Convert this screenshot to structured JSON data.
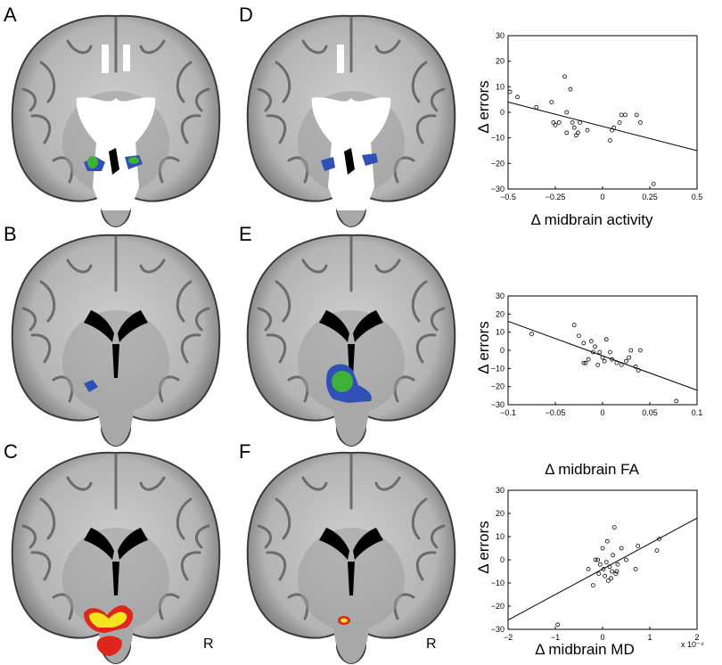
{
  "figure": {
    "panel_labels": [
      "A",
      "B",
      "C",
      "D",
      "E",
      "F"
    ],
    "orientation_label": "R",
    "colors": {
      "white_mask": "#ffffff",
      "blue_roi": "#3050b8",
      "green_roi": "#3fb03a",
      "yellow_activation": "#f5e51e",
      "red_activation": "#e0261c"
    }
  },
  "chart_data": [
    {
      "type": "scatter",
      "xlabel": "Δ midbrain activity",
      "ylabel": "Δ errors",
      "xlim": [
        -0.5,
        0.5
      ],
      "ylim": [
        -30,
        30
      ],
      "x_ticks": [
        "−0.5",
        "−0.25",
        "0",
        "0.25",
        "0.5"
      ],
      "y_ticks": [
        "30",
        "20",
        "10",
        "0",
        "−10",
        "−20",
        "−30"
      ],
      "x_tick_values": [
        -0.5,
        -0.25,
        0,
        0.25,
        0.5
      ],
      "y_tick_values": [
        30,
        20,
        10,
        0,
        -10,
        -20,
        -30
      ],
      "points": [
        [
          -0.49,
          8
        ],
        [
          -0.45,
          6
        ],
        [
          -0.35,
          2
        ],
        [
          -0.27,
          4
        ],
        [
          -0.26,
          -4
        ],
        [
          -0.25,
          -5
        ],
        [
          -0.23,
          -4
        ],
        [
          -0.2,
          14
        ],
        [
          -0.19,
          0
        ],
        [
          -0.19,
          -8
        ],
        [
          -0.17,
          9
        ],
        [
          -0.16,
          -4
        ],
        [
          -0.15,
          -6
        ],
        [
          -0.14,
          -9
        ],
        [
          -0.13,
          -8
        ],
        [
          -0.12,
          -4
        ],
        [
          -0.08,
          -7
        ],
        [
          0.04,
          -11
        ],
        [
          0.05,
          -7
        ],
        [
          0.06,
          -6
        ],
        [
          0.09,
          -4
        ],
        [
          0.1,
          -1
        ],
        [
          0.12,
          -1
        ],
        [
          0.18,
          -1
        ],
        [
          0.2,
          -4
        ],
        [
          0.27,
          -28
        ]
      ],
      "fit_line": [
        [
          -0.5,
          4
        ],
        [
          0.5,
          -15
        ]
      ]
    },
    {
      "type": "scatter",
      "xlabel": "Δ midbrain FA",
      "ylabel": "Δ errors",
      "xlim": [
        -0.1,
        0.1
      ],
      "ylim": [
        -30,
        30
      ],
      "x_ticks": [
        "−0.1",
        "−0.05",
        "0",
        "0.05",
        "0.1"
      ],
      "y_ticks": [
        "30",
        "20",
        "10",
        "0",
        "−10",
        "−20",
        "−30"
      ],
      "x_tick_values": [
        -0.1,
        -0.05,
        0,
        0.05,
        0.1
      ],
      "y_tick_values": [
        30,
        20,
        10,
        0,
        -10,
        -20,
        -30
      ],
      "points": [
        [
          -0.075,
          9
        ],
        [
          -0.03,
          14
        ],
        [
          -0.025,
          8
        ],
        [
          -0.02,
          4
        ],
        [
          -0.02,
          -7
        ],
        [
          -0.018,
          -7
        ],
        [
          -0.015,
          -5
        ],
        [
          -0.012,
          5
        ],
        [
          -0.01,
          -1
        ],
        [
          -0.008,
          2
        ],
        [
          -0.005,
          -8
        ],
        [
          -0.003,
          -1
        ],
        [
          0,
          -4
        ],
        [
          0.002,
          -6
        ],
        [
          0.004,
          6
        ],
        [
          0.008,
          -1
        ],
        [
          0.01,
          -5
        ],
        [
          0.015,
          -7
        ],
        [
          0.02,
          -8
        ],
        [
          0.025,
          -6
        ],
        [
          0.028,
          -4
        ],
        [
          0.03,
          0
        ],
        [
          0.035,
          -9
        ],
        [
          0.038,
          -11
        ],
        [
          0.04,
          0
        ],
        [
          0.078,
          -28
        ]
      ],
      "fit_line": [
        [
          -0.1,
          16
        ],
        [
          0.1,
          -22
        ]
      ]
    },
    {
      "type": "scatter",
      "xlabel": "Δ midbrain MD",
      "ylabel": "Δ errors",
      "x_exponent_label": "x 10⁻⁴",
      "xlim": [
        -2,
        2
      ],
      "ylim": [
        -30,
        30
      ],
      "x_ticks": [
        "−2",
        "−1",
        "0",
        "1",
        "2"
      ],
      "y_ticks": [
        "30",
        "20",
        "10",
        "0",
        "−10",
        "−20",
        "−30"
      ],
      "x_tick_values": [
        -2,
        -1,
        0,
        1,
        2
      ],
      "y_tick_values": [
        30,
        20,
        10,
        0,
        -10,
        -20,
        -30
      ],
      "points": [
        [
          -0.95,
          -28
        ],
        [
          -0.3,
          -4
        ],
        [
          -0.2,
          -11
        ],
        [
          -0.15,
          0
        ],
        [
          -0.1,
          0
        ],
        [
          -0.08,
          -6
        ],
        [
          -0.05,
          -2
        ],
        [
          0,
          5
        ],
        [
          0.02,
          -4
        ],
        [
          0.05,
          -7
        ],
        [
          0.08,
          -1
        ],
        [
          0.1,
          8
        ],
        [
          0.12,
          -9
        ],
        [
          0.15,
          -3
        ],
        [
          0.18,
          -8
        ],
        [
          0.2,
          -5
        ],
        [
          0.22,
          2
        ],
        [
          0.25,
          14
        ],
        [
          0.28,
          -6
        ],
        [
          0.3,
          -5
        ],
        [
          0.32,
          -2
        ],
        [
          0.4,
          5
        ],
        [
          0.5,
          0
        ],
        [
          0.7,
          -4
        ],
        [
          0.75,
          6
        ],
        [
          1.15,
          4
        ],
        [
          1.2,
          9
        ]
      ],
      "fit_line": [
        [
          -2,
          -26
        ],
        [
          2,
          18
        ]
      ]
    }
  ]
}
